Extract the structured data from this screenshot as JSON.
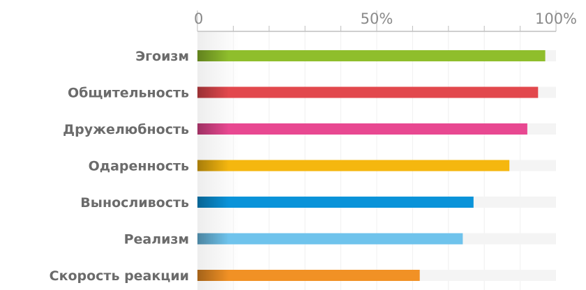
{
  "chart_data": {
    "type": "bar",
    "orientation": "horizontal",
    "xlim": [
      0,
      100
    ],
    "tick_labels": [
      "0",
      "50%",
      "100%"
    ],
    "tick_values": [
      0,
      50,
      100
    ],
    "grid": true,
    "categories": [
      "Эгоизм",
      "Общительность",
      "Дружелюбность",
      "Одаренность",
      "Выносливость",
      "Реализм",
      "Скорость реакции"
    ],
    "values": [
      97,
      95,
      92,
      87,
      77,
      74,
      62
    ],
    "colors": [
      "#8fbe2c",
      "#e2484d",
      "#e84891",
      "#f5b70f",
      "#0a93d9",
      "#6fc3ec",
      "#f19125"
    ]
  }
}
